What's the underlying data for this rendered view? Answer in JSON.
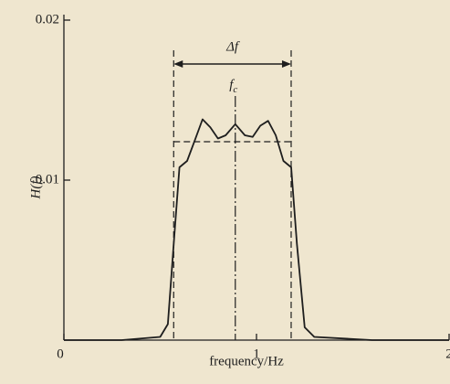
{
  "chart_data": {
    "type": "line",
    "x_label": "frequency/Hz",
    "y_label": "H(f)",
    "x": [
      0,
      0.3,
      0.5,
      0.54,
      0.57,
      0.6,
      0.64,
      0.68,
      0.72,
      0.76,
      0.8,
      0.84,
      0.89,
      0.94,
      0.98,
      1.02,
      1.06,
      1.1,
      1.14,
      1.18,
      1.21,
      1.25,
      1.3,
      1.6,
      2
    ],
    "series": [
      {
        "color": "#1e1e1e",
        "values": [
          0,
          0,
          0.0002,
          0.001,
          0.006,
          0.0108,
          0.0112,
          0.0125,
          0.0138,
          0.0133,
          0.0126,
          0.0128,
          0.0135,
          0.0128,
          0.0127,
          0.0134,
          0.0137,
          0.0128,
          0.0112,
          0.0108,
          0.006,
          0.0008,
          0.0002,
          0,
          0
        ]
      }
    ],
    "xlim": [
      0,
      2
    ],
    "ylim": [
      0,
      0.02
    ],
    "xticks": [
      0,
      1,
      2
    ],
    "yticks": [
      0.01,
      0.02
    ],
    "annotations": [
      {
        "label": "Δf",
        "x": [
          0.57,
          1.18
        ]
      },
      {
        "label": "f",
        "sub": "c",
        "x": 0.89
      }
    ],
    "hline": 0.0124
  }
}
